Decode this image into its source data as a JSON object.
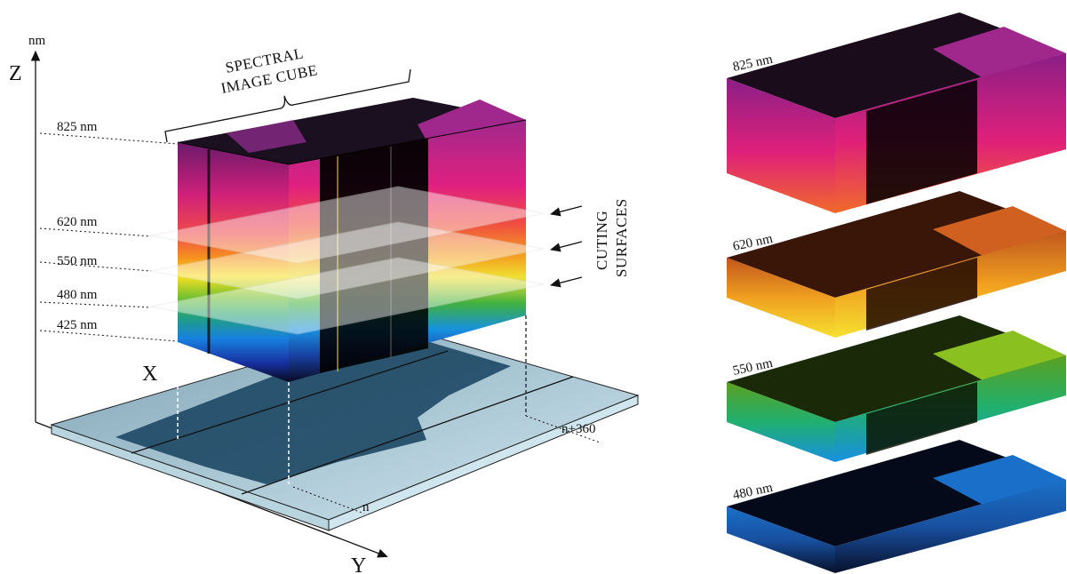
{
  "title": {
    "line1": "SPECTRAL",
    "line2": "IMAGE CUBE"
  },
  "axes": {
    "z": "Z",
    "unit": "nm",
    "x": "X",
    "y": "Y"
  },
  "wavelength_labels": [
    "825 nm",
    "620 nm",
    "550 nm",
    "480 nm",
    "425 nm"
  ],
  "cutting_surfaces": {
    "line1": "CUTING",
    "line2": "SURFACES"
  },
  "scan_lines": {
    "start": "n",
    "end": "n+360"
  },
  "slices": [
    {
      "label": "825 nm",
      "top_color": "#a0288c",
      "front_colors": [
        "#8a1f86",
        "#e0207a",
        "#f05a2a"
      ]
    },
    {
      "label": "620 nm",
      "top_color": "#c0561e",
      "front_colors": [
        "#c0561e",
        "#f0a020",
        "#f5e030"
      ]
    },
    {
      "label": "550 nm",
      "top_color": "#6aa81c",
      "front_colors": [
        "#5aa020",
        "#30b060",
        "#1890e0"
      ]
    },
    {
      "label": "480 nm",
      "top_color": "#1a5aa0",
      "front_colors": [
        "#1a70c8",
        "#1850a0",
        "#08102a"
      ]
    }
  ],
  "colors": {
    "cube_spectrum": [
      "#a0288c",
      "#e02080",
      "#f04a4a",
      "#f5901e",
      "#f8e020",
      "#70c030",
      "#20a080",
      "#1880e0",
      "#1830a0",
      "#080a20"
    ],
    "water": "#1f4a66",
    "ice": "#cfe6ee"
  }
}
